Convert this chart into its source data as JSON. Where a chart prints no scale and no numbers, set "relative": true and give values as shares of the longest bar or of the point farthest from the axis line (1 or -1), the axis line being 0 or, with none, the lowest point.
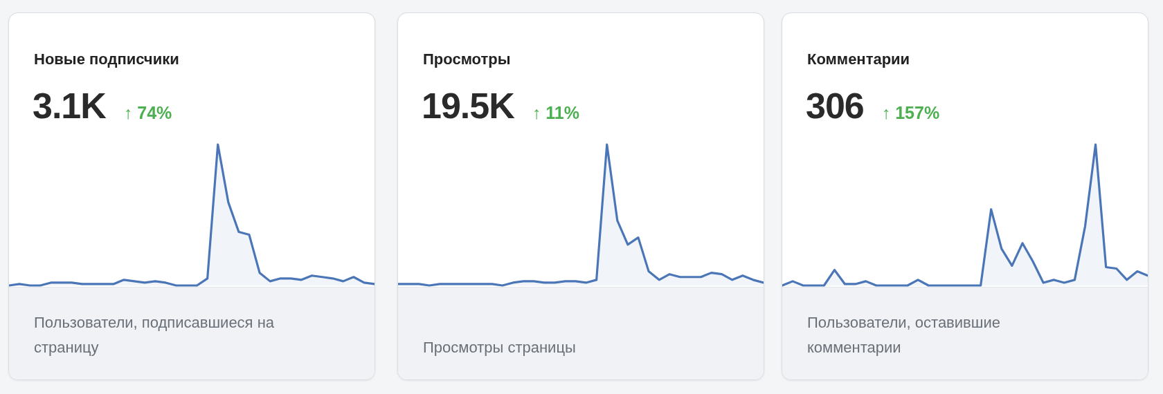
{
  "chart_data": [
    {
      "type": "area",
      "title": "Новые подписчики",
      "annotations": [
        "3.1K",
        "↑ 74%",
        "Пользователи, подписавшиеся на страницу"
      ],
      "relative": true,
      "categories": [
        null,
        null,
        null,
        null,
        null,
        null,
        null,
        null,
        null,
        null,
        null,
        null,
        null,
        null,
        null,
        null,
        null,
        null,
        null,
        null,
        null,
        null,
        null,
        null,
        null,
        null,
        null,
        null,
        null,
        null,
        null,
        null,
        null,
        null,
        null,
        null
      ],
      "series": [
        {
          "color": "#4a76b8",
          "values": [
            0,
            0.01,
            0,
            0,
            0.02,
            0.02,
            0.02,
            0.01,
            0.01,
            0.01,
            0.01,
            0.04,
            0.03,
            0.02,
            0.03,
            0.02,
            0,
            0,
            0,
            0.05,
            1,
            0.59,
            0.38,
            0.36,
            0.09,
            0.03,
            0.05,
            0.05,
            0.04,
            0.07,
            0.06,
            0.05,
            0.03,
            0.06,
            0.02,
            0.01
          ]
        }
      ]
    },
    {
      "type": "area",
      "title": "Просмотры",
      "annotations": [
        "19.5K",
        "↑ 11%",
        "Просмотры страницы"
      ],
      "relative": true,
      "categories": [
        null,
        null,
        null,
        null,
        null,
        null,
        null,
        null,
        null,
        null,
        null,
        null,
        null,
        null,
        null,
        null,
        null,
        null,
        null,
        null,
        null,
        null,
        null,
        null,
        null,
        null,
        null,
        null,
        null,
        null,
        null,
        null,
        null,
        null,
        null,
        null
      ],
      "series": [
        {
          "color": "#4a76b8",
          "values": [
            0.01,
            0.01,
            0.01,
            0,
            0.01,
            0.01,
            0.01,
            0.01,
            0.01,
            0.01,
            0,
            0.02,
            0.03,
            0.03,
            0.02,
            0.02,
            0.03,
            0.03,
            0.02,
            0.04,
            1,
            0.46,
            0.29,
            0.34,
            0.1,
            0.04,
            0.08,
            0.06,
            0.06,
            0.06,
            0.09,
            0.08,
            0.04,
            0.07,
            0.04,
            0.02
          ]
        }
      ]
    },
    {
      "type": "area",
      "title": "Комментарии",
      "annotations": [
        "306",
        "↑ 157%",
        "Пользователи, оставившие комментарии"
      ],
      "relative": true,
      "categories": [
        null,
        null,
        null,
        null,
        null,
        null,
        null,
        null,
        null,
        null,
        null,
        null,
        null,
        null,
        null,
        null,
        null,
        null,
        null,
        null,
        null,
        null,
        null,
        null,
        null,
        null,
        null,
        null,
        null,
        null,
        null,
        null,
        null,
        null,
        null,
        null
      ],
      "series": [
        {
          "color": "#4a76b8",
          "values": [
            0,
            0.03,
            0,
            0,
            0,
            0.11,
            0.01,
            0.01,
            0.03,
            0,
            0,
            0,
            0,
            0.04,
            0,
            0,
            0,
            0,
            0,
            0,
            0.54,
            0.26,
            0.14,
            0.3,
            0.17,
            0.02,
            0.04,
            0.02,
            0.04,
            0.42,
            1,
            0.13,
            0.12,
            0.04,
            0.1,
            0.07
          ]
        }
      ]
    }
  ]
}
